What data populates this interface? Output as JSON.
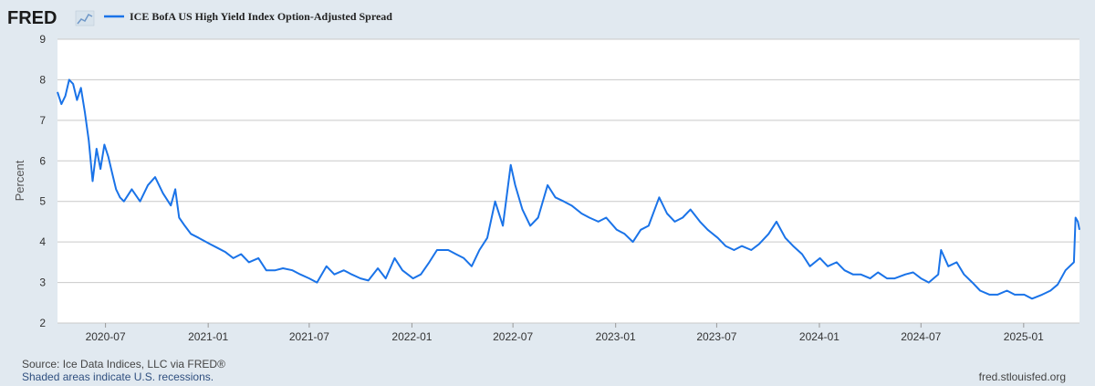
{
  "brand": {
    "name": "FRED"
  },
  "footer": {
    "source": "Source: Ice Data Indices, LLC via FRED®",
    "shaded_note": "Shaded areas indicate U.S. recessions.",
    "site": "fred.stlouisfed.org"
  },
  "chart_data": {
    "type": "line",
    "title": "",
    "ylabel": "Percent",
    "xlabel": "",
    "ylim": [
      2,
      9
    ],
    "yticks": [
      2,
      3,
      4,
      5,
      6,
      7,
      8,
      9
    ],
    "xlim": [
      "2020-04-06",
      "2025-04-11"
    ],
    "xticks": [
      "2020-07",
      "2021-01",
      "2021-07",
      "2022-01",
      "2022-07",
      "2023-01",
      "2023-07",
      "2024-01",
      "2024-07",
      "2025-01"
    ],
    "grid": true,
    "legend": "top-left",
    "color": "#1a73e8",
    "series": [
      {
        "name": "ICE BofA US High Yield Index Option-Adjusted Spread",
        "x": [
          "2020-04-06",
          "2020-04-13",
          "2020-04-20",
          "2020-04-27",
          "2020-05-04",
          "2020-05-11",
          "2020-05-18",
          "2020-05-25",
          "2020-06-01",
          "2020-06-08",
          "2020-06-15",
          "2020-06-22",
          "2020-06-29",
          "2020-07-06",
          "2020-07-13",
          "2020-07-20",
          "2020-07-27",
          "2020-08-03",
          "2020-08-17",
          "2020-09-01",
          "2020-09-15",
          "2020-09-28",
          "2020-10-12",
          "2020-10-26",
          "2020-11-03",
          "2020-11-10",
          "2020-11-20",
          "2020-12-01",
          "2020-12-15",
          "2021-01-04",
          "2021-01-18",
          "2021-02-01",
          "2021-02-15",
          "2021-03-01",
          "2021-03-15",
          "2021-04-01",
          "2021-04-15",
          "2021-05-01",
          "2021-05-15",
          "2021-06-01",
          "2021-06-15",
          "2021-07-01",
          "2021-07-15",
          "2021-08-01",
          "2021-08-15",
          "2021-09-01",
          "2021-09-15",
          "2021-10-01",
          "2021-10-15",
          "2021-11-01",
          "2021-11-15",
          "2021-12-01",
          "2021-12-15",
          "2022-01-03",
          "2022-01-17",
          "2022-02-01",
          "2022-02-15",
          "2022-03-07",
          "2022-03-21",
          "2022-04-04",
          "2022-04-18",
          "2022-05-02",
          "2022-05-16",
          "2022-05-30",
          "2022-06-13",
          "2022-06-27",
          "2022-07-05",
          "2022-07-18",
          "2022-08-01",
          "2022-08-15",
          "2022-09-01",
          "2022-09-15",
          "2022-09-30",
          "2022-10-14",
          "2022-11-01",
          "2022-11-15",
          "2022-12-01",
          "2022-12-15",
          "2023-01-03",
          "2023-01-17",
          "2023-02-01",
          "2023-02-15",
          "2023-03-01",
          "2023-03-20",
          "2023-04-03",
          "2023-04-17",
          "2023-05-01",
          "2023-05-15",
          "2023-06-01",
          "2023-06-15",
          "2023-07-03",
          "2023-07-17",
          "2023-08-01",
          "2023-08-15",
          "2023-09-01",
          "2023-09-15",
          "2023-10-02",
          "2023-10-16",
          "2023-11-01",
          "2023-11-15",
          "2023-12-01",
          "2023-12-15",
          "2024-01-02",
          "2024-01-16",
          "2024-02-01",
          "2024-02-15",
          "2024-03-01",
          "2024-03-15",
          "2024-04-01",
          "2024-04-15",
          "2024-05-01",
          "2024-05-15",
          "2024-06-03",
          "2024-06-17",
          "2024-07-01",
          "2024-07-15",
          "2024-08-01",
          "2024-08-06",
          "2024-08-19",
          "2024-09-03",
          "2024-09-16",
          "2024-10-01",
          "2024-10-15",
          "2024-11-01",
          "2024-11-15",
          "2024-12-02",
          "2024-12-16",
          "2025-01-02",
          "2025-01-16",
          "2025-02-03",
          "2025-02-18",
          "2025-03-03",
          "2025-03-17",
          "2025-04-01",
          "2025-04-04",
          "2025-04-08",
          "2025-04-11"
        ],
        "y": [
          7.7,
          7.4,
          7.6,
          8.0,
          7.9,
          7.5,
          7.8,
          7.2,
          6.5,
          5.5,
          6.3,
          5.8,
          6.4,
          6.1,
          5.7,
          5.3,
          5.1,
          5.0,
          5.3,
          5.0,
          5.4,
          5.6,
          5.2,
          4.9,
          5.3,
          4.6,
          4.4,
          4.2,
          4.1,
          3.95,
          3.85,
          3.75,
          3.6,
          3.7,
          3.5,
          3.6,
          3.3,
          3.3,
          3.35,
          3.3,
          3.2,
          3.1,
          3.0,
          3.4,
          3.2,
          3.3,
          3.2,
          3.1,
          3.05,
          3.35,
          3.1,
          3.6,
          3.3,
          3.1,
          3.2,
          3.5,
          3.8,
          3.8,
          3.7,
          3.6,
          3.4,
          3.8,
          4.1,
          5.0,
          4.4,
          5.9,
          5.4,
          4.8,
          4.4,
          4.6,
          5.4,
          5.1,
          5.0,
          4.9,
          4.7,
          4.6,
          4.5,
          4.6,
          4.3,
          4.2,
          4.0,
          4.3,
          4.4,
          5.1,
          4.7,
          4.5,
          4.6,
          4.8,
          4.5,
          4.3,
          4.1,
          3.9,
          3.8,
          3.9,
          3.8,
          3.95,
          4.2,
          4.5,
          4.1,
          3.9,
          3.7,
          3.4,
          3.6,
          3.4,
          3.5,
          3.3,
          3.2,
          3.2,
          3.1,
          3.25,
          3.1,
          3.1,
          3.2,
          3.25,
          3.1,
          3.0,
          3.2,
          3.8,
          3.4,
          3.5,
          3.2,
          3.0,
          2.8,
          2.7,
          2.7,
          2.8,
          2.7,
          2.7,
          2.6,
          2.7,
          2.8,
          2.95,
          3.3,
          3.5,
          4.6,
          4.5,
          4.3
        ]
      }
    ]
  }
}
